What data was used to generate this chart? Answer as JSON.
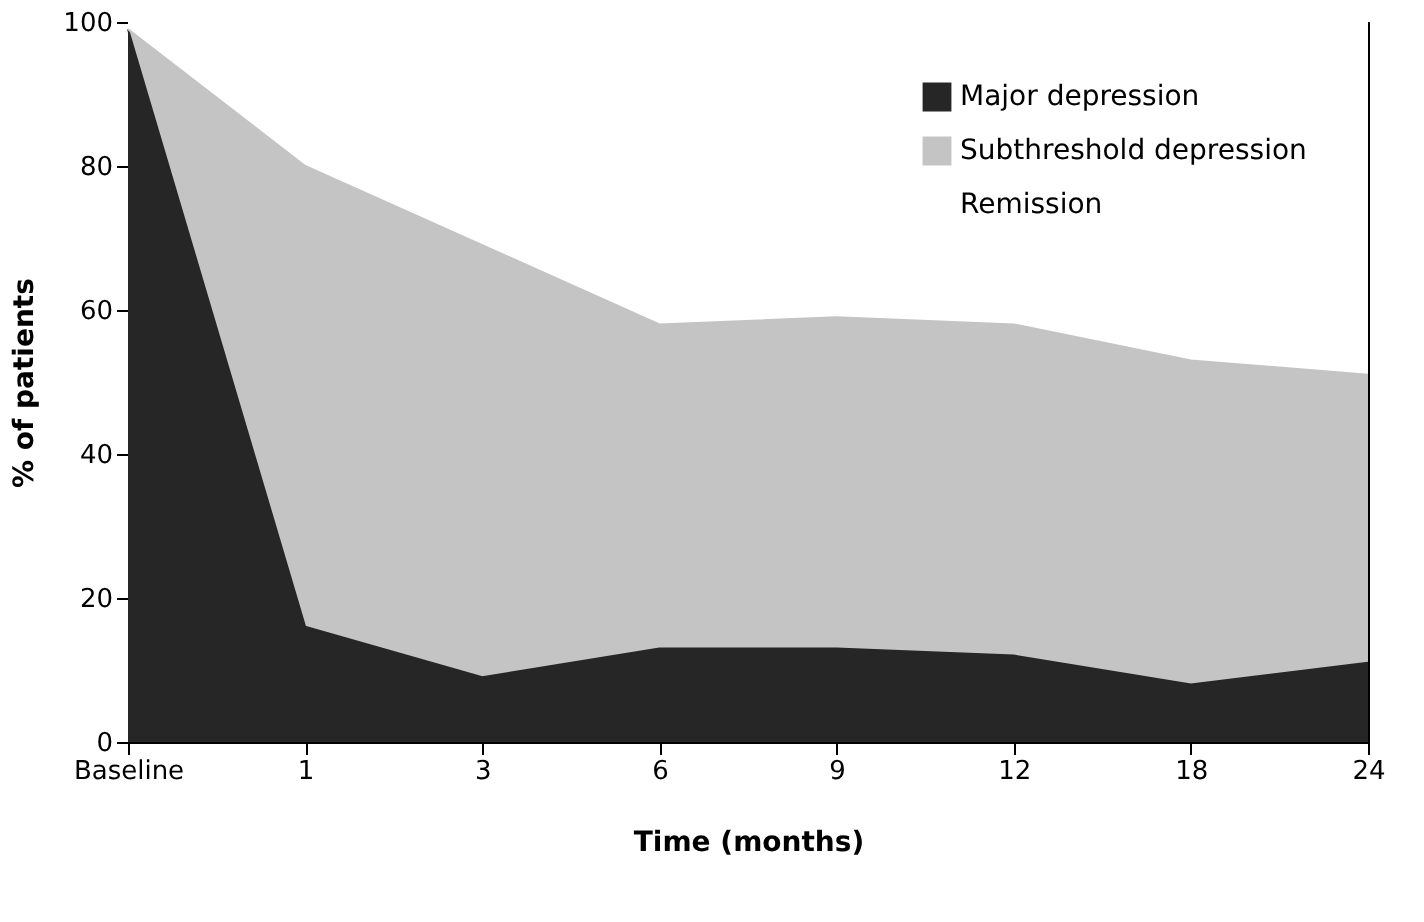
{
  "chart_data": {
    "type": "area",
    "stacked": true,
    "xlabel": "Time (months)",
    "ylabel": "% of patients",
    "categories": [
      "Baseline",
      "1",
      "3",
      "6",
      "9",
      "12",
      "18",
      "24"
    ],
    "series": [
      {
        "name": "Major depression",
        "color": "#262626",
        "values": [
          99,
          16,
          9,
          13,
          13,
          12,
          8,
          11
        ]
      },
      {
        "name": "Subthreshold depression",
        "color": "#c4c4c4",
        "values": [
          0,
          64,
          60,
          45,
          46,
          46,
          45,
          40
        ]
      },
      {
        "name": "Remission",
        "color": "#ffffff",
        "values": [
          1,
          20,
          31,
          42,
          41,
          42,
          47,
          49
        ]
      }
    ],
    "ylim": [
      0,
      100
    ],
    "yticks": [
      0,
      20,
      40,
      60,
      80,
      100
    ],
    "grid": false,
    "legend": "top right"
  }
}
